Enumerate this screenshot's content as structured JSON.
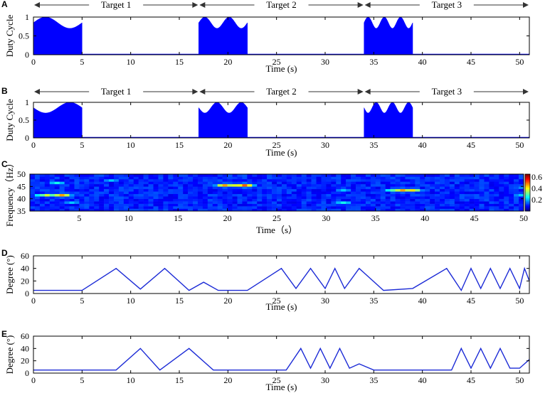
{
  "chart_data": [
    {
      "panel": "A",
      "type": "area",
      "xlabel": "Time (s)",
      "ylabel": "Duty Cycle",
      "xlim": [
        0,
        51
      ],
      "ylim": [
        0,
        1
      ],
      "xticks": [
        0,
        5,
        10,
        15,
        20,
        25,
        30,
        35,
        40,
        45,
        50
      ],
      "yticks": [
        0,
        0.5,
        1
      ],
      "targets": [
        {
          "label": "Target 1",
          "start": 0,
          "end": 17
        },
        {
          "label": "Target 2",
          "start": 17,
          "end": 34
        },
        {
          "label": "Target 3",
          "start": 34,
          "end": 51
        }
      ],
      "segments": [
        {
          "start": 0,
          "end": 5,
          "freq_hz": 0.2,
          "phase": 0,
          "upper_min": 0.7,
          "upper_max": 1.0,
          "lower_min": 0.0,
          "lower_max": 0.2
        },
        {
          "start": 17,
          "end": 22,
          "freq_hz": 0.4,
          "phase": 0,
          "upper_min": 0.7,
          "upper_max": 1.0,
          "lower_min": 0.0,
          "lower_max": 0.25
        },
        {
          "start": 34,
          "end": 39,
          "freq_hz": 0.6,
          "phase": 0,
          "upper_min": 0.7,
          "upper_max": 1.0,
          "lower_min": 0.0,
          "lower_max": 0.3
        }
      ],
      "color": "#0000ff"
    },
    {
      "panel": "B",
      "type": "area",
      "xlabel": "Time (s)",
      "ylabel": "Duty Cycle",
      "xlim": [
        0,
        51
      ],
      "ylim": [
        0,
        1
      ],
      "xticks": [
        0,
        5,
        10,
        15,
        20,
        25,
        30,
        35,
        40,
        45,
        50
      ],
      "yticks": [
        0,
        0.5,
        1
      ],
      "targets": [
        {
          "label": "Target 1",
          "start": 0,
          "end": 17
        },
        {
          "label": "Target 2",
          "start": 17,
          "end": 34
        },
        {
          "label": "Target 3",
          "start": 34,
          "end": 51
        }
      ],
      "segments": [
        {
          "start": 0,
          "end": 5,
          "freq_hz": 0.2,
          "phase": 3.1416,
          "upper_min": 0.7,
          "upper_max": 1.0,
          "lower_min": 0.0,
          "lower_max": 0.2
        },
        {
          "start": 17,
          "end": 22,
          "freq_hz": 0.4,
          "phase": 3.1416,
          "upper_min": 0.7,
          "upper_max": 1.0,
          "lower_min": 0.0,
          "lower_max": 0.25
        },
        {
          "start": 34,
          "end": 39,
          "freq_hz": 0.6,
          "phase": 3.1416,
          "upper_min": 0.7,
          "upper_max": 1.0,
          "lower_min": 0.0,
          "lower_max": 0.3
        }
      ],
      "color": "#0000ff"
    },
    {
      "panel": "C",
      "type": "heatmap",
      "xlabel": "Time（s）",
      "ylabel": "Frequency（Hz）",
      "xlim": [
        0,
        50
      ],
      "ylim": [
        35,
        50
      ],
      "xticks": [
        5,
        10,
        15,
        20,
        25,
        30,
        35,
        40,
        45,
        50
      ],
      "yticks": [
        35,
        40,
        45,
        50
      ],
      "colorbar": {
        "min": 0,
        "max": 0.65,
        "ticks": [
          0.2,
          0.4,
          0.6
        ]
      },
      "n_time_bins": 100,
      "n_freq_bins": 15,
      "hotspots": [
        {
          "t": 1.5,
          "f": 41.5,
          "v": 0.45
        },
        {
          "t": 3.0,
          "f": 41.0,
          "v": 0.55
        },
        {
          "t": 1.0,
          "f": 41.5,
          "v": 0.35
        },
        {
          "t": 19.5,
          "f": 45.0,
          "v": 0.55
        },
        {
          "t": 21.5,
          "f": 45.0,
          "v": 0.6
        },
        {
          "t": 20.5,
          "f": 45.5,
          "v": 0.45
        },
        {
          "t": 37.5,
          "f": 43.5,
          "v": 0.55
        },
        {
          "t": 38.5,
          "f": 43.0,
          "v": 0.5
        },
        {
          "t": 36.5,
          "f": 43.0,
          "v": 0.35
        },
        {
          "t": 31.5,
          "f": 38.0,
          "v": 0.3
        },
        {
          "t": 31.5,
          "f": 43.0,
          "v": 0.25
        },
        {
          "t": 49.5,
          "f": 41.0,
          "v": 0.25
        },
        {
          "t": 49.5,
          "f": 44.0,
          "v": 0.2
        },
        {
          "t": 8.0,
          "f": 47.5,
          "v": 0.25
        },
        {
          "t": 2.5,
          "f": 46.5,
          "v": 0.3
        },
        {
          "t": 4.0,
          "f": 38.5,
          "v": 0.25
        }
      ]
    },
    {
      "panel": "D",
      "type": "line",
      "xlabel": "Time (s)",
      "ylabel": "Degree (°)",
      "xlim": [
        0,
        51
      ],
      "ylim": [
        0,
        60
      ],
      "xticks": [
        0,
        5,
        10,
        15,
        20,
        25,
        30,
        35,
        40,
        45,
        50
      ],
      "yticks": [
        0,
        20,
        40,
        60
      ],
      "color": "#1c2bd6",
      "x": [
        0,
        5,
        8.5,
        11,
        13.5,
        16,
        17.5,
        19,
        22,
        25.5,
        27,
        28.5,
        30,
        31,
        32,
        33.5,
        36,
        39,
        42.5,
        44,
        45,
        46,
        47,
        48,
        49,
        50,
        50.5,
        51
      ],
      "y": [
        5,
        5,
        40,
        7,
        40,
        5,
        18,
        5,
        5,
        40,
        8,
        40,
        8,
        40,
        8,
        40,
        5,
        8,
        40,
        5,
        40,
        8,
        40,
        8,
        40,
        8,
        40,
        20
      ]
    },
    {
      "panel": "E",
      "type": "line",
      "xlabel": "Time (s)",
      "ylabel": "Degree (°)",
      "xlim": [
        0,
        51
      ],
      "ylim": [
        0,
        60
      ],
      "xticks": [
        0,
        5,
        10,
        15,
        20,
        25,
        30,
        35,
        40,
        45,
        50
      ],
      "yticks": [
        0,
        20,
        40,
        60
      ],
      "color": "#1c2bd6",
      "x": [
        0,
        8.5,
        11,
        13,
        16,
        18.5,
        26,
        27.5,
        28.5,
        29.5,
        30.5,
        31.5,
        32.5,
        33.5,
        35,
        43,
        44,
        45,
        46,
        47,
        48,
        49,
        50,
        51
      ],
      "y": [
        5,
        5,
        40,
        5,
        40,
        5,
        5,
        40,
        8,
        40,
        8,
        40,
        8,
        15,
        5,
        5,
        40,
        8,
        40,
        8,
        40,
        8,
        8,
        22
      ]
    }
  ]
}
